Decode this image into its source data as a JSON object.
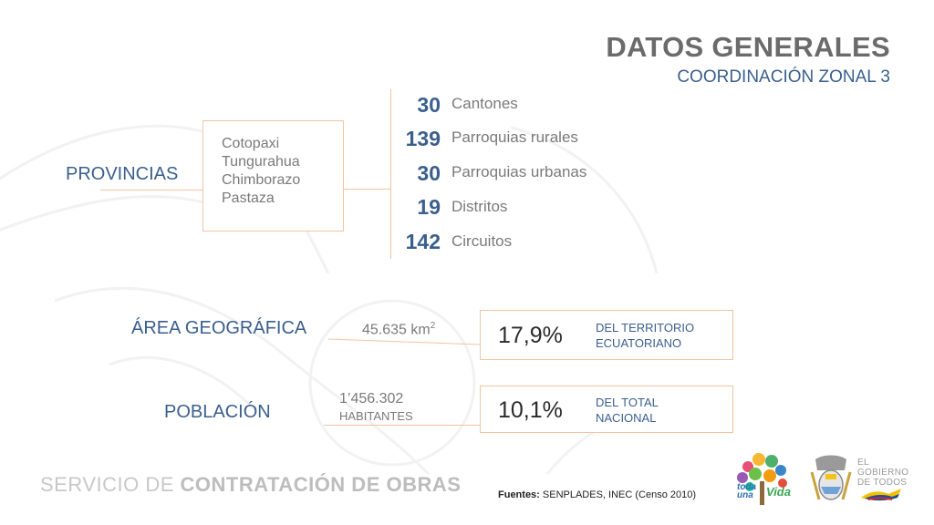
{
  "header": {
    "title": "DATOS GENERALES",
    "subtitle": "COORDINACIÓN ZONAL 3"
  },
  "provinces": {
    "label": "PROVINCIAS",
    "items": [
      "Cotopaxi",
      "Tungurahua",
      "Chimborazo",
      "Pastaza"
    ]
  },
  "stats": [
    {
      "value": "30",
      "label": "Cantones"
    },
    {
      "value": "139",
      "label": "Parroquias rurales"
    },
    {
      "value": "30",
      "label": "Parroquias urbanas"
    },
    {
      "value": "19",
      "label": "Distritos"
    },
    {
      "value": "142",
      "label": "Circuitos"
    }
  ],
  "area": {
    "label": "ÁREA GEOGRÁFICA",
    "value": "45.635 km",
    "value_sup": "2",
    "percent": "17,9%",
    "note_line1": "DEL TERRITORIO",
    "note_line2": "ECUATORIANO"
  },
  "population": {
    "label": "POBLACIÓN",
    "value_line1": "1’456.302",
    "value_line2": "HABITANTES",
    "percent": "10,1%",
    "note_line1": "DEL TOTAL",
    "note_line2": "NACIONAL"
  },
  "footer": {
    "brand_light": "SERVICIO DE ",
    "brand_bold": "CONTRATACIÓN DE OBRAS",
    "source_bold": "Fuentes:",
    "source_text": " SENPLADES, INEC (Censo 2010)",
    "logo_toda_1": "toda",
    "logo_toda_2": "una",
    "logo_toda_3": "Vida",
    "gov_line1": "EL",
    "gov_line2": "GOBIERNO",
    "gov_line3": "DE TODOS"
  },
  "colors": {
    "accent_blue": "#3a5f8e",
    "connector_orange": "#f1c4a3",
    "gray_text": "#7a7a7a"
  }
}
